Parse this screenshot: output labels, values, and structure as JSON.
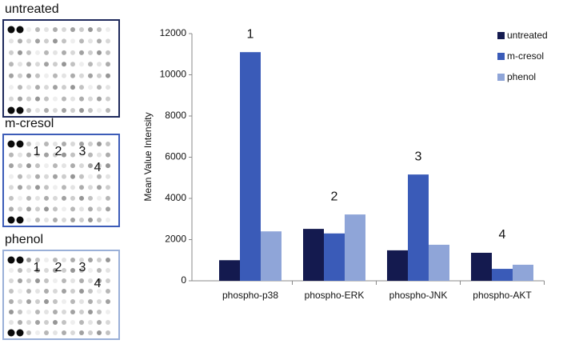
{
  "blots": [
    {
      "label": "untreated"
    },
    {
      "label": "m-cresol",
      "spots": [
        "1",
        "2",
        "3",
        "4"
      ]
    },
    {
      "label": "phenol",
      "spots": [
        "1",
        "2",
        "3",
        "4"
      ]
    }
  ],
  "chart_data": {
    "type": "bar",
    "y_label": "Mean Value Intensity",
    "categories": [
      "phospho-p38",
      "phospho-ERK",
      "phospho-JNK",
      "phospho-AKT"
    ],
    "series": [
      {
        "name": "untreated",
        "color": "#141a4f",
        "values": [
          1000,
          2520,
          1480,
          1360
        ]
      },
      {
        "name": "m-cresol",
        "color": "#3a5bb8",
        "values": [
          11100,
          2300,
          5160,
          580
        ]
      },
      {
        "name": "phenol",
        "color": "#8fa5d8",
        "values": [
          2400,
          3220,
          1750,
          780
        ]
      }
    ],
    "annotations": [
      "1",
      "2",
      "3",
      "4"
    ],
    "ylim": [
      0,
      12000
    ],
    "yticks": [
      0,
      2000,
      4000,
      6000,
      8000,
      10000,
      12000
    ],
    "grid": false,
    "legend": "top-right"
  }
}
